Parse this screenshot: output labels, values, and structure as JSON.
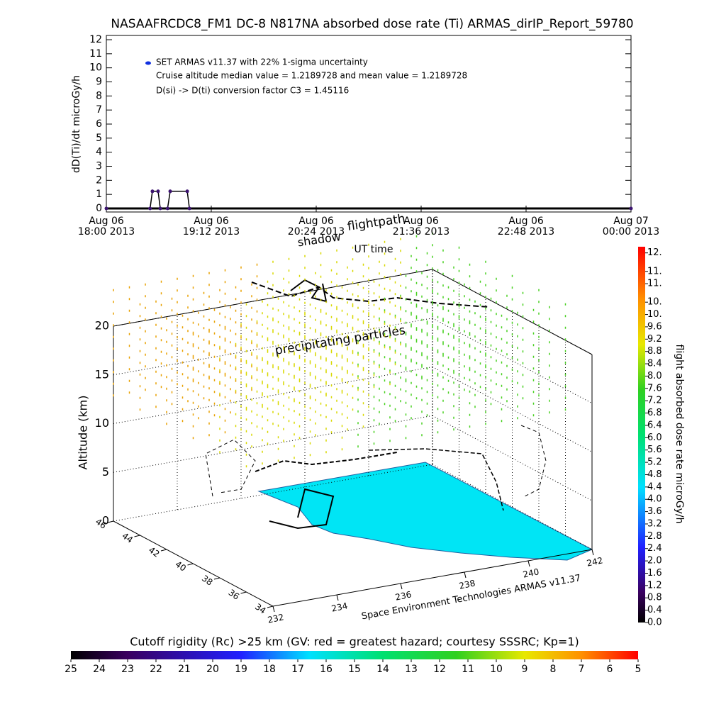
{
  "chart_data": [
    {
      "type": "line",
      "title": "NASAAFRCDC8_FM1 DC-8   N817NA absorbed dose rate (Ti) ARMAS_dirIP_Report_59780",
      "ylabel": "dD(Ti)/dt microGy/h",
      "xlabel": "UT time",
      "annotations": [
        "Cruise altitude median value = 1.2189728 and mean value = 1.2189728",
        "D(si) -> D(ti) conversion factor C3 = 1.45116"
      ],
      "x": [
        0,
        30,
        31.6,
        35.5,
        37,
        42,
        43.8,
        55.5,
        57,
        360
      ],
      "series": [
        {
          "name": "SET ARMAS v11.37 with 22% 1-sigma uncertainty",
          "color": "#3c1470",
          "legend_color": "#1030e0",
          "values": [
            0,
            0,
            1.22,
            1.22,
            0,
            0,
            1.22,
            1.22,
            0,
            0
          ]
        }
      ],
      "xlim": [
        0,
        360
      ],
      "xticks": [
        {
          "value": 0,
          "label": "Aug 06\n18:00 2013"
        },
        {
          "value": 72,
          "label": "Aug 06\n19:12 2013"
        },
        {
          "value": 144,
          "label": "Aug 06\n20:24 2013"
        },
        {
          "value": 216,
          "label": "Aug 06\n21:36 2013"
        },
        {
          "value": 288,
          "label": "Aug 06\n22:48 2013"
        },
        {
          "value": 360,
          "label": "Aug 07\n00:00 2013"
        }
      ],
      "ylim": [
        0,
        12
      ],
      "yticks": [
        0,
        1,
        2,
        3,
        4,
        5,
        6,
        7,
        8,
        9,
        10,
        11,
        12
      ]
    },
    {
      "type": "scatter3d",
      "zlabel": "Altitude (km)",
      "annotations": [
        "shadow",
        "flightpath",
        "precipitating particles"
      ],
      "credit": "Space Environment Technologies ARMAS v11.37",
      "xlim": [
        232,
        242
      ],
      "xticks": [
        232,
        234,
        236,
        238,
        240,
        242
      ],
      "ylim": [
        34,
        46
      ],
      "yticks": [
        34,
        36,
        38,
        40,
        42,
        44,
        46
      ],
      "zlim": [
        0,
        20
      ],
      "zticks": [
        0,
        5,
        10,
        15,
        20
      ],
      "colorbar": {
        "label": "flight absorbed dose rate microGy/h",
        "clim": [
          0,
          12.2
        ],
        "ticks": [
          {
            "value": 0,
            "label": "0.0"
          },
          0.4,
          0.8,
          1.2,
          1.6,
          {
            "value": 2,
            "label": "2.0"
          },
          2.4,
          2.8,
          3.2,
          3.6,
          {
            "value": 4,
            "label": "4.0"
          },
          4.4,
          4.8,
          5.2,
          5.6,
          {
            "value": 6,
            "label": "6.0"
          },
          6.4,
          6.8,
          7.2,
          7.6,
          {
            "value": 8,
            "label": "8.0"
          },
          8.4,
          8.8,
          9.2,
          9.6,
          {
            "value": 10,
            "label": "10."
          },
          {
            "value": 10.4,
            "label": "10."
          },
          {
            "value": 11,
            "label": "11."
          },
          {
            "value": 11.4,
            "label": "11."
          },
          {
            "value": 12,
            "label": "12."
          }
        ]
      },
      "colorbar2": {
        "title": "Cutoff rigidity (Rc) >25 km (GV: red = greatest hazard; courtesy SSSRC; Kp=1)",
        "clim": [
          25,
          5
        ],
        "ticks": [
          25,
          24,
          23,
          22,
          21,
          20,
          19,
          18,
          17,
          16,
          15,
          14,
          13,
          12,
          11,
          10,
          9,
          8,
          7,
          6,
          5
        ]
      }
    }
  ]
}
